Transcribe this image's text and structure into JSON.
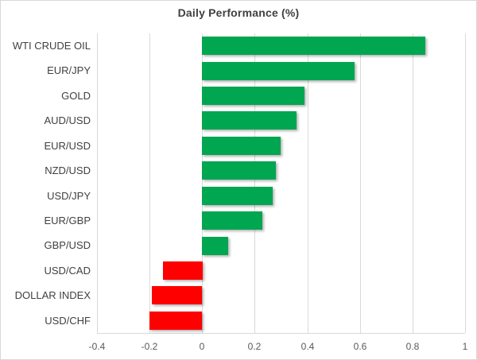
{
  "title": "Daily Performance (%)",
  "colors": {
    "positive": "#00a650",
    "negative": "#ff0000",
    "grid": "#d9d9d9",
    "frame_border": "#d9d9d9",
    "title_text": "#404040",
    "category_text": "#404040",
    "tick_text": "#595959"
  },
  "chart_data": {
    "type": "bar",
    "orientation": "horizontal",
    "title": "Daily Performance (%)",
    "categories": [
      "WTI CRUDE OIL",
      "EUR/JPY",
      "GOLD",
      "AUD/USD",
      "EUR/USD",
      "NZD/USD",
      "USD/JPY",
      "EUR/GBP",
      "GBP/USD",
      "USD/CAD",
      "DOLLAR INDEX",
      "USD/CHF"
    ],
    "values": [
      0.85,
      0.58,
      0.39,
      0.36,
      0.3,
      0.28,
      0.27,
      0.23,
      0.1,
      -0.15,
      -0.19,
      -0.2
    ],
    "xlim": [
      -0.4,
      1.0
    ],
    "xticks": [
      -0.4,
      -0.2,
      0,
      0.2,
      0.4,
      0.6,
      0.8,
      1
    ],
    "xtick_labels": [
      "-0.4",
      "-0.2",
      "0",
      "0.2",
      "0.4",
      "0.6",
      "0.8",
      "1"
    ],
    "grid": true,
    "legend": false,
    "positive_color": "#00a650",
    "negative_color": "#ff0000"
  }
}
